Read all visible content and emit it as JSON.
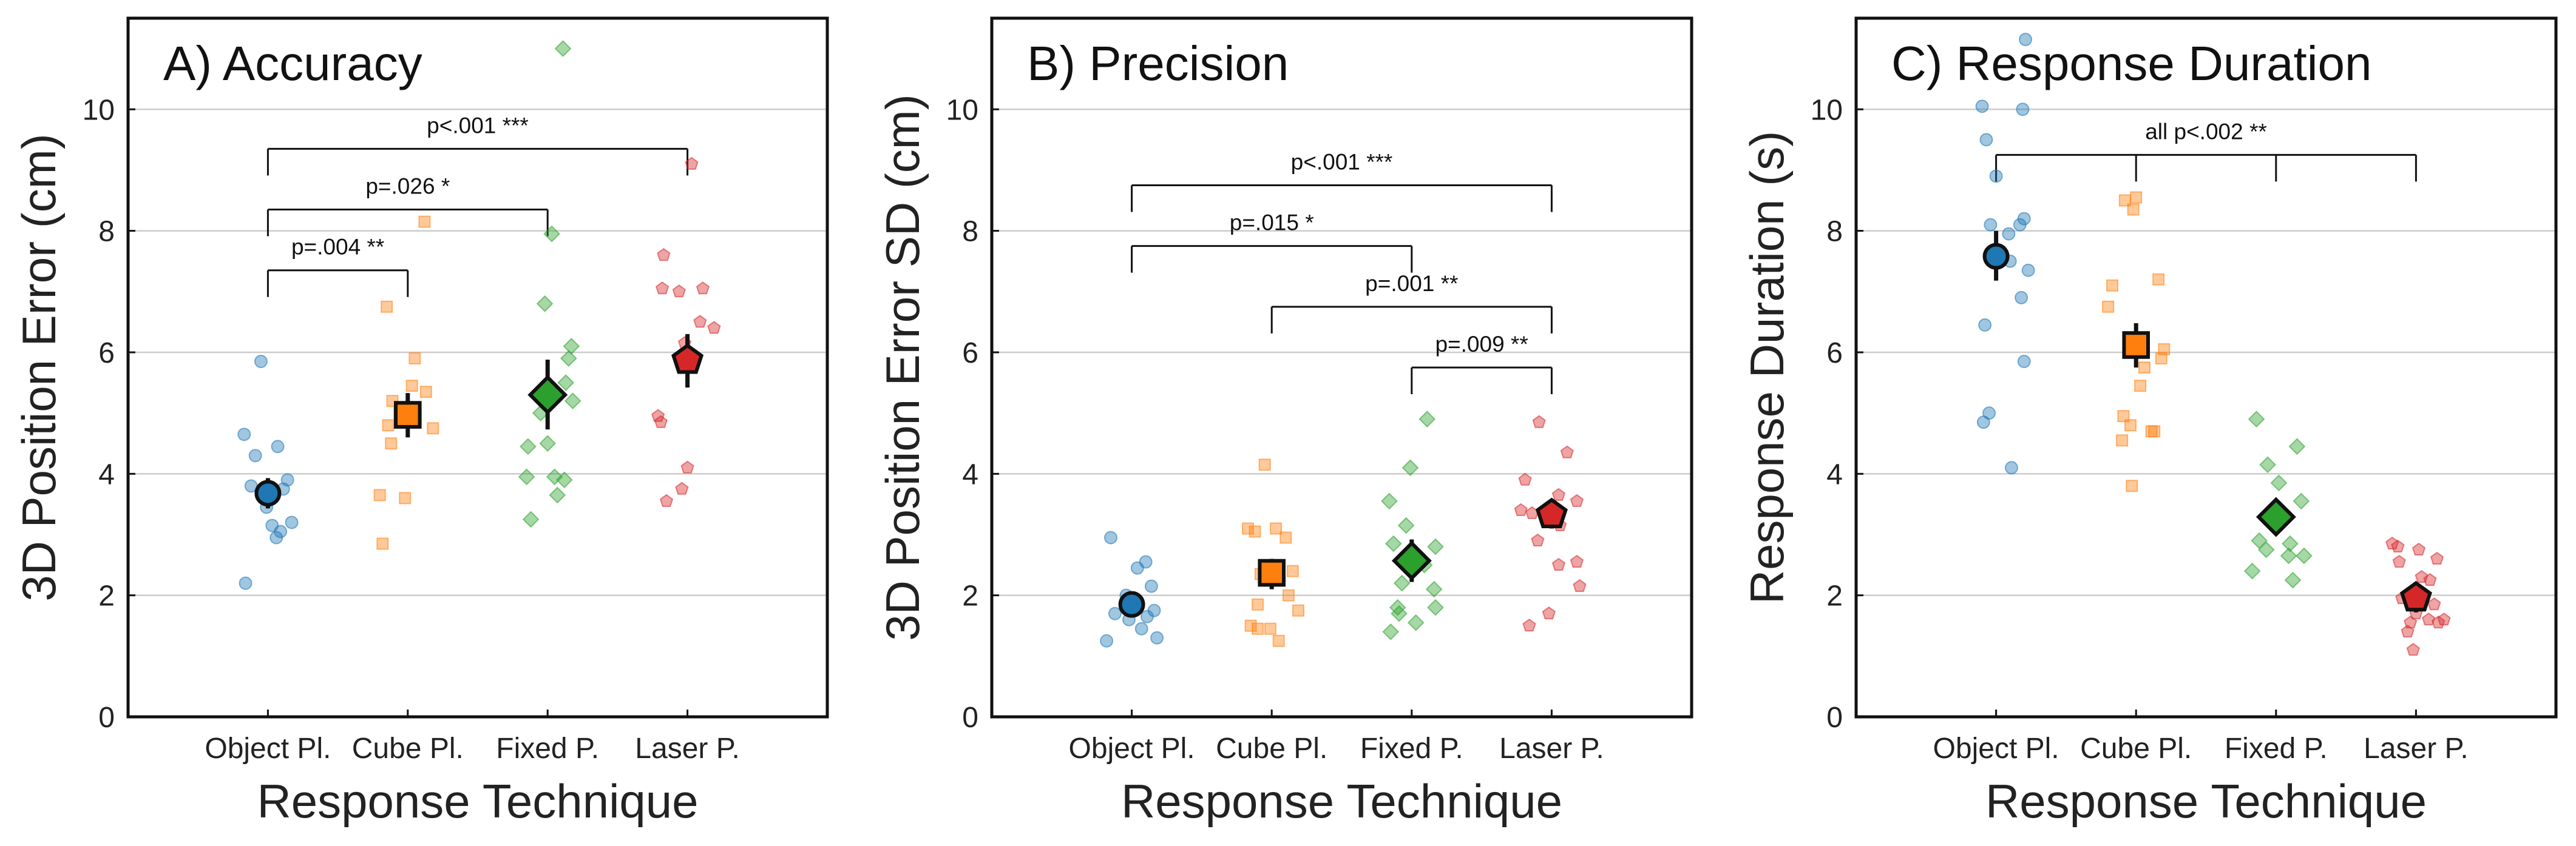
{
  "figure": {
    "background": "#ffffff"
  },
  "colors": {
    "object": "#1f77b4",
    "cube": "#ff7f0e",
    "fixed": "#2ca02c",
    "laser": "#d62728"
  },
  "chart_data": [
    {
      "type": "scatter",
      "title": "A) Accuracy",
      "xlabel": "Response Technique",
      "ylabel": "3D Position Error (cm)",
      "ylim": [
        0,
        11.5
      ],
      "yticks": [
        0,
        2,
        4,
        6,
        8,
        10
      ],
      "grid": "horizontal",
      "categories": [
        "Object Pl.",
        "Cube Pl.",
        "Fixed P.",
        "Laser P."
      ],
      "series": [
        {
          "marker": "circle",
          "color": "#1f77b4",
          "mean": 3.68,
          "ci": [
            3.43,
            3.93
          ],
          "points": [
            [
              -0.05,
              5.85
            ],
            [
              -0.17,
              4.65
            ],
            [
              0.07,
              4.45
            ],
            [
              -0.09,
              4.3
            ],
            [
              0.14,
              3.9
            ],
            [
              -0.12,
              3.8
            ],
            [
              0.11,
              3.75
            ],
            [
              -0.01,
              3.45
            ],
            [
              0.17,
              3.2
            ],
            [
              0.03,
              3.15
            ],
            [
              0.09,
              3.05
            ],
            [
              0.06,
              2.95
            ],
            [
              -0.16,
              2.2
            ]
          ]
        },
        {
          "marker": "square",
          "color": "#ff7f0e",
          "mean": 4.97,
          "ci": [
            4.6,
            5.33
          ],
          "points": [
            [
              0.12,
              8.15
            ],
            [
              -0.15,
              6.75
            ],
            [
              0.05,
              5.9
            ],
            [
              0.03,
              5.45
            ],
            [
              0.13,
              5.35
            ],
            [
              -0.11,
              5.2
            ],
            [
              0.0,
              5.1
            ],
            [
              -0.06,
              5.0
            ],
            [
              -0.14,
              4.8
            ],
            [
              0.18,
              4.75
            ],
            [
              -0.12,
              4.5
            ],
            [
              -0.2,
              3.65
            ],
            [
              -0.02,
              3.6
            ],
            [
              -0.18,
              2.85
            ]
          ]
        },
        {
          "marker": "diamond",
          "color": "#2ca02c",
          "mean": 5.3,
          "ci": [
            4.73,
            5.88
          ],
          "points": [
            [
              0.11,
              11.0
            ],
            [
              0.03,
              7.95
            ],
            [
              -0.02,
              6.8
            ],
            [
              0.17,
              6.1
            ],
            [
              0.15,
              5.9
            ],
            [
              0.13,
              5.5
            ],
            [
              0.18,
              5.2
            ],
            [
              -0.05,
              5.0
            ],
            [
              -0.14,
              4.45
            ],
            [
              0.0,
              4.5
            ],
            [
              -0.15,
              3.95
            ],
            [
              0.05,
              3.95
            ],
            [
              0.12,
              3.9
            ],
            [
              0.07,
              3.65
            ],
            [
              -0.12,
              3.25
            ]
          ]
        },
        {
          "marker": "pentagon",
          "color": "#d62728",
          "mean": 5.87,
          "ci": [
            5.42,
            6.3
          ],
          "points": [
            [
              0.03,
              9.1
            ],
            [
              -0.17,
              7.6
            ],
            [
              0.11,
              7.05
            ],
            [
              -0.06,
              7.0
            ],
            [
              -0.18,
              7.05
            ],
            [
              0.09,
              6.5
            ],
            [
              0.19,
              6.4
            ],
            [
              -0.02,
              6.15
            ],
            [
              -0.21,
              4.95
            ],
            [
              -0.19,
              4.85
            ],
            [
              0.0,
              4.1
            ],
            [
              -0.04,
              3.75
            ],
            [
              -0.15,
              3.55
            ]
          ]
        }
      ],
      "annotations": [
        {
          "from": 0,
          "to": 1,
          "y": 7.35,
          "text": "p=.004 **"
        },
        {
          "from": 0,
          "to": 2,
          "y": 8.35,
          "text": "p=.026 *"
        },
        {
          "from": 0,
          "to": 3,
          "y": 9.35,
          "text": "p<.001 ***"
        }
      ]
    },
    {
      "type": "scatter",
      "title": "B) Precision",
      "xlabel": "Response Technique",
      "ylabel": "3D Position Error SD (cm)",
      "ylim": [
        0,
        11.5
      ],
      "yticks": [
        0,
        2,
        4,
        6,
        8,
        10
      ],
      "grid": "horizontal",
      "categories": [
        "Object Pl.",
        "Cube Pl.",
        "Fixed P.",
        "Laser P."
      ],
      "series": [
        {
          "marker": "circle",
          "color": "#1f77b4",
          "mean": 1.85,
          "ci": [
            1.68,
            2.02
          ],
          "points": [
            [
              -0.15,
              2.95
            ],
            [
              0.1,
              2.55
            ],
            [
              0.04,
              2.45
            ],
            [
              0.14,
              2.15
            ],
            [
              -0.04,
              2.0
            ],
            [
              0.0,
              1.85
            ],
            [
              0.16,
              1.75
            ],
            [
              0.11,
              1.65
            ],
            [
              -0.12,
              1.7
            ],
            [
              -0.02,
              1.6
            ],
            [
              0.07,
              1.45
            ],
            [
              0.18,
              1.3
            ],
            [
              -0.18,
              1.25
            ]
          ]
        },
        {
          "marker": "square",
          "color": "#ff7f0e",
          "mean": 2.37,
          "ci": [
            2.1,
            2.6
          ],
          "points": [
            [
              -0.05,
              4.15
            ],
            [
              -0.17,
              3.1
            ],
            [
              -0.12,
              3.05
            ],
            [
              0.03,
              3.1
            ],
            [
              0.1,
              2.95
            ],
            [
              0.15,
              2.4
            ],
            [
              -0.08,
              2.35
            ],
            [
              0.12,
              2.0
            ],
            [
              -0.1,
              1.85
            ],
            [
              0.19,
              1.75
            ],
            [
              -0.15,
              1.5
            ],
            [
              -0.1,
              1.45
            ],
            [
              -0.01,
              1.45
            ],
            [
              0.05,
              1.25
            ]
          ]
        },
        {
          "marker": "diamond",
          "color": "#2ca02c",
          "mean": 2.57,
          "ci": [
            2.22,
            2.92
          ],
          "points": [
            [
              0.11,
              4.9
            ],
            [
              -0.01,
              4.1
            ],
            [
              -0.16,
              3.55
            ],
            [
              -0.04,
              3.15
            ],
            [
              -0.13,
              2.85
            ],
            [
              0.17,
              2.8
            ],
            [
              0.09,
              2.5
            ],
            [
              -0.07,
              2.2
            ],
            [
              0.16,
              2.1
            ],
            [
              -0.1,
              1.8
            ],
            [
              0.17,
              1.8
            ],
            [
              -0.09,
              1.7
            ],
            [
              0.03,
              1.55
            ],
            [
              -0.15,
              1.4
            ]
          ]
        },
        {
          "marker": "pentagon",
          "color": "#d62728",
          "mean": 3.33,
          "ci": [
            3.1,
            3.55
          ],
          "points": [
            [
              -0.09,
              4.85
            ],
            [
              0.11,
              4.35
            ],
            [
              -0.19,
              3.9
            ],
            [
              0.05,
              3.65
            ],
            [
              0.18,
              3.55
            ],
            [
              -0.22,
              3.4
            ],
            [
              -0.14,
              3.35
            ],
            [
              0.06,
              3.15
            ],
            [
              -0.1,
              2.9
            ],
            [
              0.18,
              2.55
            ],
            [
              0.05,
              2.5
            ],
            [
              0.2,
              2.15
            ],
            [
              -0.02,
              1.7
            ],
            [
              -0.16,
              1.5
            ]
          ]
        }
      ],
      "annotations": [
        {
          "from": 0,
          "to": 2,
          "y": 7.75,
          "text": "p=.015 *"
        },
        {
          "from": 0,
          "to": 3,
          "y": 8.75,
          "text": "p<.001 ***"
        },
        {
          "from": 1,
          "to": 3,
          "y": 6.75,
          "text": "p=.001 **"
        },
        {
          "from": 2,
          "to": 3,
          "y": 5.75,
          "text": "p=.009 **"
        }
      ]
    },
    {
      "type": "scatter",
      "title": "C) Response Duration",
      "xlabel": "Response Technique",
      "ylabel": "Response Duration (s)",
      "ylim": [
        0,
        11.5
      ],
      "yticks": [
        0,
        2,
        4,
        6,
        8,
        10
      ],
      "grid": "horizontal",
      "categories": [
        "Object Pl.",
        "Cube Pl.",
        "Fixed P.",
        "Laser P."
      ],
      "series": [
        {
          "marker": "circle",
          "color": "#1f77b4",
          "mean": 7.58,
          "ci": [
            7.18,
            8.0
          ],
          "points": [
            [
              0.21,
              11.15
            ],
            [
              -0.1,
              10.05
            ],
            [
              0.19,
              10.0
            ],
            [
              -0.07,
              9.5
            ],
            [
              0.0,
              8.9
            ],
            [
              0.2,
              8.2
            ],
            [
              0.17,
              8.1
            ],
            [
              -0.04,
              8.1
            ],
            [
              0.09,
              7.95
            ],
            [
              0.1,
              7.5
            ],
            [
              0.23,
              7.35
            ],
            [
              -0.08,
              6.45
            ],
            [
              0.18,
              6.9
            ],
            [
              0.2,
              5.85
            ],
            [
              -0.05,
              5.0
            ],
            [
              -0.09,
              4.85
            ],
            [
              0.11,
              4.1
            ]
          ]
        },
        {
          "marker": "square",
          "color": "#ff7f0e",
          "mean": 6.12,
          "ci": [
            5.75,
            6.48
          ],
          "points": [
            [
              0.0,
              8.55
            ],
            [
              -0.08,
              8.5
            ],
            [
              -0.02,
              8.35
            ],
            [
              0.16,
              7.2
            ],
            [
              -0.17,
              7.1
            ],
            [
              -0.2,
              6.75
            ],
            [
              0.2,
              6.05
            ],
            [
              0.18,
              5.9
            ],
            [
              0.06,
              5.75
            ],
            [
              0.03,
              5.45
            ],
            [
              -0.09,
              4.95
            ],
            [
              -0.04,
              4.8
            ],
            [
              0.11,
              4.7
            ],
            [
              0.13,
              4.7
            ],
            [
              -0.1,
              4.55
            ],
            [
              -0.03,
              3.8
            ]
          ]
        },
        {
          "marker": "diamond",
          "color": "#2ca02c",
          "mean": 3.29,
          "ci": [
            3.05,
            3.55
          ],
          "points": [
            [
              -0.14,
              4.9
            ],
            [
              0.15,
              4.45
            ],
            [
              -0.06,
              4.15
            ],
            [
              0.02,
              3.85
            ],
            [
              0.18,
              3.55
            ],
            [
              -0.05,
              3.25
            ],
            [
              -0.12,
              2.9
            ],
            [
              0.1,
              2.85
            ],
            [
              -0.07,
              2.75
            ],
            [
              0.09,
              2.65
            ],
            [
              0.2,
              2.65
            ],
            [
              -0.17,
              2.4
            ],
            [
              0.12,
              2.25
            ]
          ]
        },
        {
          "marker": "pentagon",
          "color": "#d62728",
          "mean": 1.96,
          "ci": [
            1.72,
            2.2
          ],
          "points": [
            [
              -0.17,
              2.85
            ],
            [
              -0.13,
              2.8
            ],
            [
              0.02,
              2.75
            ],
            [
              0.15,
              2.6
            ],
            [
              -0.12,
              2.55
            ],
            [
              0.04,
              2.3
            ],
            [
              0.1,
              2.25
            ],
            [
              -0.1,
              1.95
            ],
            [
              0.13,
              1.85
            ],
            [
              0.0,
              1.7
            ],
            [
              0.09,
              1.6
            ],
            [
              0.2,
              1.6
            ],
            [
              -0.04,
              1.55
            ],
            [
              0.16,
              1.55
            ],
            [
              -0.06,
              1.4
            ],
            [
              -0.02,
              1.1
            ]
          ]
        }
      ],
      "annotations": [
        {
          "from": 0,
          "to": 3,
          "y": 9.25,
          "text": "all p<.002 **",
          "drops": [
            0,
            1,
            2,
            3
          ]
        }
      ]
    }
  ]
}
